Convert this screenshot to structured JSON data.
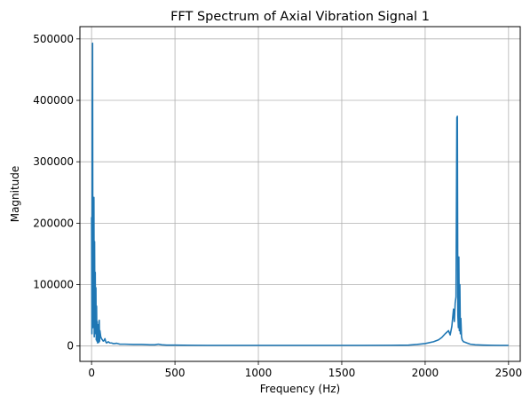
{
  "chart_data": {
    "type": "line",
    "title": "FFT Spectrum of Axial Vibration Signal 1",
    "xlabel": "Frequency (Hz)",
    "ylabel": "Magnitude",
    "xlim": [
      -70,
      2570
    ],
    "ylim": [
      -25000,
      520000
    ],
    "grid": true,
    "color": "#1f77b4",
    "xticks": [
      0,
      500,
      1000,
      1500,
      2000,
      2500
    ],
    "xtick_labels": [
      "0",
      "500",
      "1000",
      "1500",
      "2000",
      "2500"
    ],
    "yticks": [
      0,
      100000,
      200000,
      300000,
      400000,
      500000
    ],
    "ytick_labels": [
      "0",
      "100000",
      "200000",
      "300000",
      "400000",
      "500000"
    ],
    "series": [
      {
        "x": [
          0,
          2,
          4,
          6,
          8,
          10,
          12,
          14,
          16,
          18,
          20,
          22,
          24,
          26,
          28,
          30,
          32,
          34,
          36,
          38,
          40,
          42,
          44,
          46,
          48,
          50,
          55,
          60,
          65,
          70,
          75,
          80,
          85,
          90,
          95,
          100,
          110,
          120,
          130,
          140,
          150,
          170,
          200,
          250,
          300,
          350,
          380,
          400,
          420,
          450,
          500,
          600,
          700,
          800,
          900,
          1000,
          1200,
          1400,
          1600,
          1800,
          1900,
          1950,
          2000,
          2050,
          2080,
          2100,
          2120,
          2140,
          2150,
          2160,
          2170,
          2175,
          2180,
          2185,
          2190,
          2193,
          2196,
          2199,
          2202,
          2205,
          2208,
          2211,
          2214,
          2218,
          2222,
          2230,
          2240,
          2250,
          2270,
          2300,
          2350,
          2400,
          2450,
          2500
        ],
        "y": [
          210000,
          20000,
          385000,
          493000,
          30000,
          240000,
          60000,
          242000,
          15000,
          170000,
          40000,
          120000,
          20000,
          95000,
          10000,
          65000,
          8000,
          40000,
          5000,
          30000,
          12000,
          35000,
          6000,
          42000,
          8000,
          25000,
          15000,
          12000,
          10000,
          8000,
          9000,
          12000,
          7000,
          5000,
          6000,
          7000,
          5000,
          5000,
          4000,
          4000,
          4500,
          3000,
          3000,
          2500,
          2500,
          2000,
          2000,
          3000,
          2000,
          1500,
          1500,
          1200,
          1000,
          1000,
          1000,
          1000,
          1000,
          1000,
          1000,
          1200,
          1500,
          2500,
          4000,
          7000,
          10000,
          14000,
          20000,
          25000,
          18000,
          32000,
          60000,
          40000,
          70000,
          80000,
          372000,
          374000,
          50000,
          30000,
          145000,
          25000,
          100000,
          20000,
          45000,
          15000,
          10000,
          7000,
          6000,
          5000,
          3000,
          2000,
          1500,
          1200,
          1000,
          1000
        ]
      }
    ]
  }
}
